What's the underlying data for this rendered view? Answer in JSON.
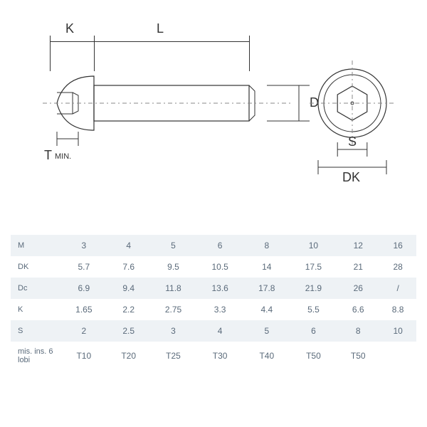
{
  "diagram": {
    "labels": {
      "K": "K",
      "L": "L",
      "D": "D",
      "S": "S",
      "DK": "DK",
      "Tmin": "T",
      "Tmin_sub": "MIN."
    },
    "colors": {
      "line": "#333333",
      "dash": "#888888",
      "text": "#333333"
    }
  },
  "table": {
    "columns": [
      "M",
      "3",
      "4",
      "5",
      "6",
      "8",
      "10",
      "12",
      "16"
    ],
    "rows": [
      {
        "label": "DK",
        "cells": [
          "5.7",
          "7.6",
          "9.5",
          "10.5",
          "14",
          "17.5",
          "21",
          "28"
        ]
      },
      {
        "label": "Dc",
        "cells": [
          "6.9",
          "9.4",
          "11.8",
          "13.6",
          "17.8",
          "21.9",
          "26",
          "/"
        ]
      },
      {
        "label": "K",
        "cells": [
          "1.65",
          "2.2",
          "2.75",
          "3.3",
          "4.4",
          "5.5",
          "6.6",
          "8.8"
        ]
      },
      {
        "label": "S",
        "cells": [
          "2",
          "2.5",
          "3",
          "4",
          "5",
          "6",
          "8",
          "10"
        ]
      },
      {
        "label": "mis. ins. 6 lobi",
        "cells": [
          "T10",
          "T20",
          "T25",
          "T30",
          "T40",
          "T50",
          "T50",
          ""
        ]
      }
    ],
    "header_bg": "#eef2f5",
    "alt_bg": "#eef2f5",
    "text_color": "#5a6a7a"
  }
}
